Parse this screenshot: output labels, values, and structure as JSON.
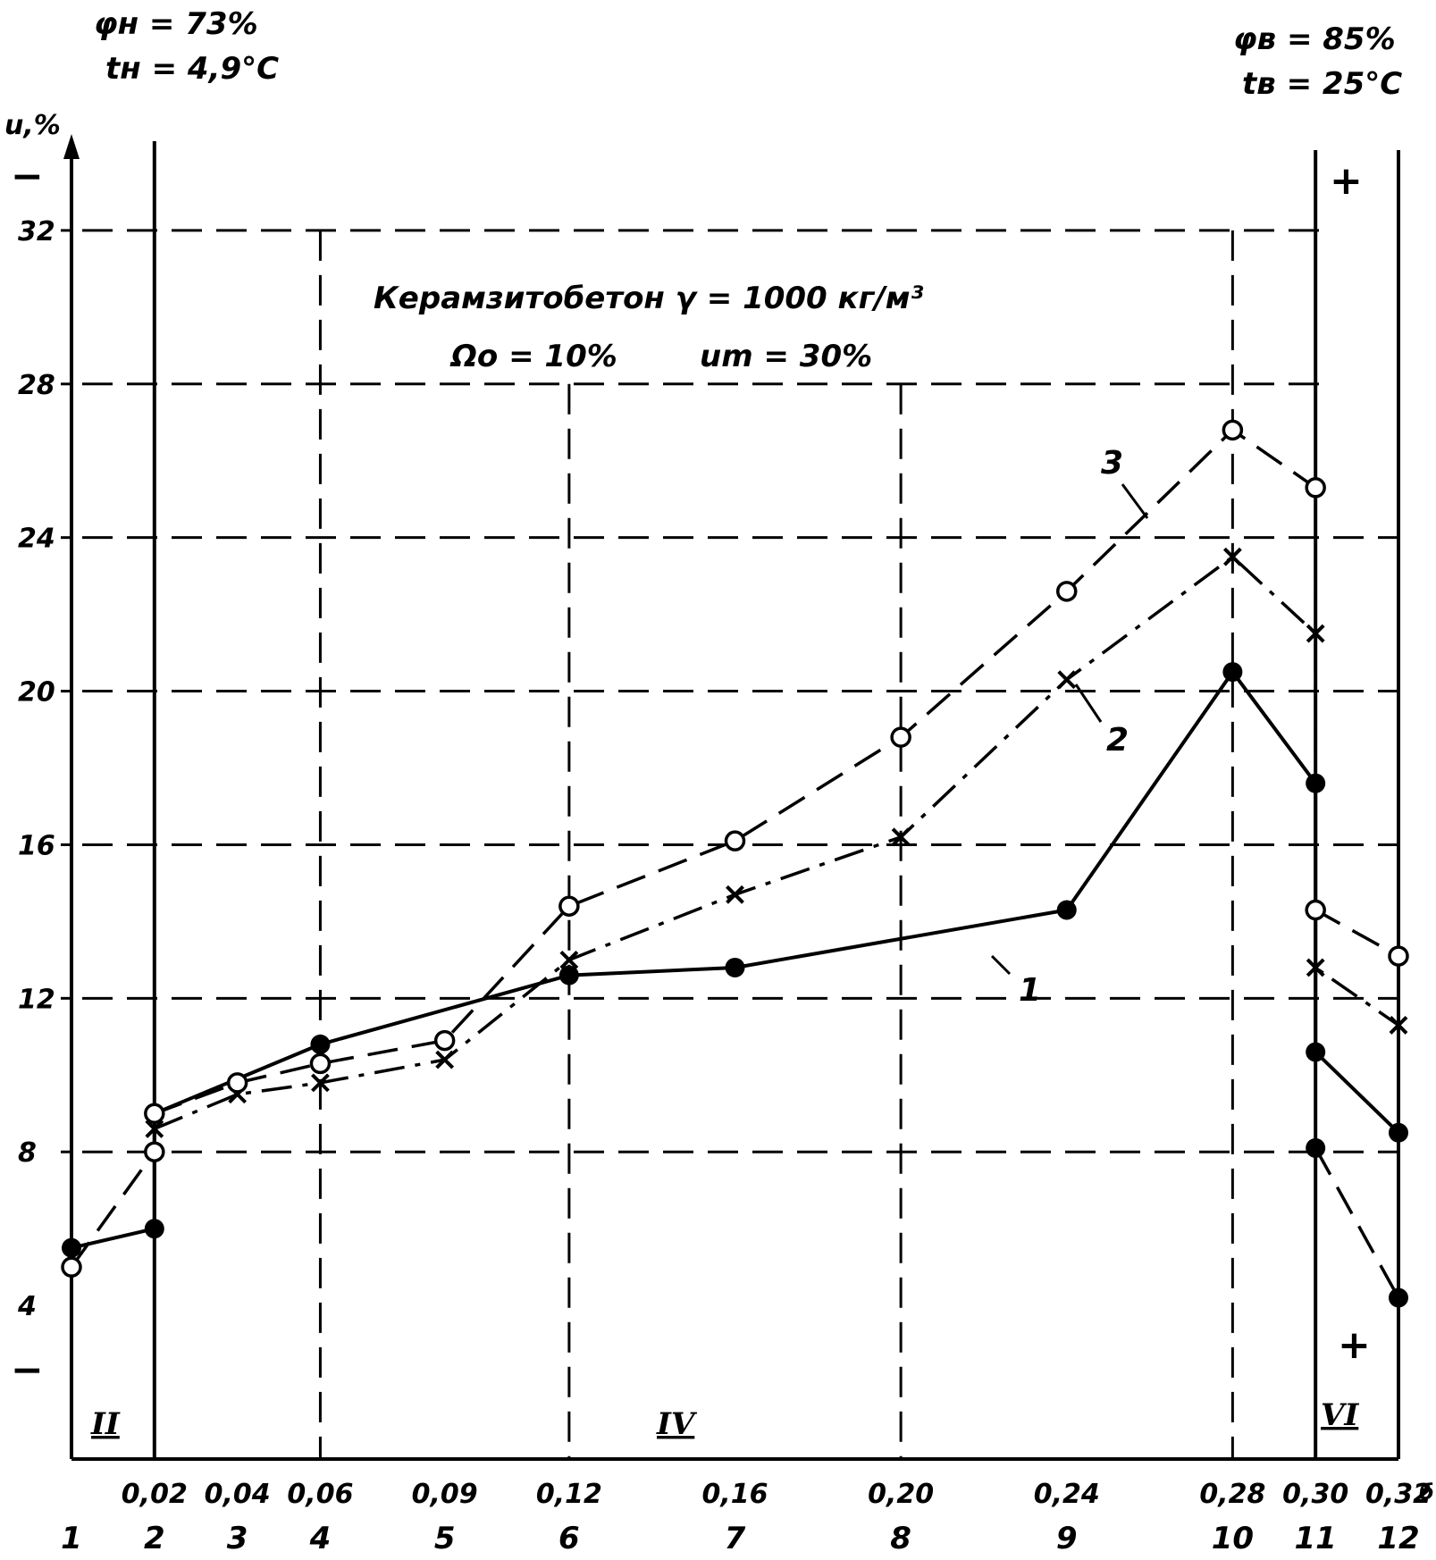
{
  "annotations": {
    "outer_phi": "φн = 73%",
    "outer_t": "tн = 4,9°C",
    "inner_phi": "φв = 85%",
    "inner_t": "tв = 25°C",
    "material": "Керамзитобетон γ = 1000 кг/м³",
    "omega": "Ωо = 10%",
    "um": "um = 30%",
    "zones": [
      "II",
      "IV",
      "VI"
    ],
    "signs": {
      "minus_top": "−",
      "minus_bottom": "−",
      "plus_top": "+",
      "plus_bottom": "+"
    },
    "corner": "б"
  },
  "chart_data": {
    "type": "line",
    "ylabel": "u,%",
    "ylim": [
      0,
      36
    ],
    "y_ticks": [
      4,
      8,
      12,
      16,
      20,
      24,
      28,
      32
    ],
    "xlim": [
      0,
      0.32
    ],
    "x_ticks": [
      {
        "x": 0.02,
        "label": "0,02"
      },
      {
        "x": 0.04,
        "label": "0,04"
      },
      {
        "x": 0.06,
        "label": "0,06"
      },
      {
        "x": 0.09,
        "label": "0,09"
      },
      {
        "x": 0.12,
        "label": "0,12"
      },
      {
        "x": 0.16,
        "label": "0,16"
      },
      {
        "x": 0.2,
        "label": "0,20"
      },
      {
        "x": 0.24,
        "label": "0,24"
      },
      {
        "x": 0.28,
        "label": "0,28"
      },
      {
        "x": 0.3,
        "label": "0,30"
      },
      {
        "x": 0.32,
        "label": "0,32"
      }
    ],
    "point_numbers": [
      {
        "x": 0.0,
        "label": "1"
      },
      {
        "x": 0.02,
        "label": "2"
      },
      {
        "x": 0.04,
        "label": "3"
      },
      {
        "x": 0.06,
        "label": "4"
      },
      {
        "x": 0.09,
        "label": "5"
      },
      {
        "x": 0.12,
        "label": "6"
      },
      {
        "x": 0.16,
        "label": "7"
      },
      {
        "x": 0.2,
        "label": "8"
      },
      {
        "x": 0.24,
        "label": "9"
      },
      {
        "x": 0.28,
        "label": "10"
      },
      {
        "x": 0.3,
        "label": "11"
      },
      {
        "x": 0.32,
        "label": "12"
      }
    ],
    "series": [
      {
        "name": "1",
        "style": "solid",
        "marker": "filled-circle",
        "points": [
          [
            0.0,
            5.5
          ],
          [
            0.02,
            6.0
          ],
          [
            0.02,
            9.0
          ],
          [
            0.06,
            10.8
          ],
          [
            0.12,
            12.6
          ],
          [
            0.16,
            12.8
          ],
          [
            0.24,
            14.3
          ],
          [
            0.28,
            20.5
          ],
          [
            0.3,
            17.6
          ],
          [
            0.3,
            10.6
          ],
          [
            0.32,
            8.5
          ]
        ]
      },
      {
        "name": "2",
        "style": "dash-dot",
        "marker": "cross",
        "points": [
          [
            0.02,
            8.6
          ],
          [
            0.04,
            9.5
          ],
          [
            0.06,
            9.8
          ],
          [
            0.09,
            10.4
          ],
          [
            0.12,
            13.0
          ],
          [
            0.16,
            14.7
          ],
          [
            0.2,
            16.2
          ],
          [
            0.24,
            20.3
          ],
          [
            0.28,
            23.5
          ],
          [
            0.3,
            21.5
          ],
          [
            0.3,
            12.8
          ],
          [
            0.32,
            11.3
          ]
        ]
      },
      {
        "name": "3",
        "style": "dashed",
        "marker": "open-circle",
        "points": [
          [
            0.0,
            5.0
          ],
          [
            0.02,
            8.0
          ],
          [
            0.02,
            9.0
          ],
          [
            0.04,
            9.8
          ],
          [
            0.06,
            10.3
          ],
          [
            0.09,
            10.9
          ],
          [
            0.12,
            14.4
          ],
          [
            0.16,
            16.1
          ],
          [
            0.2,
            18.8
          ],
          [
            0.24,
            22.6
          ],
          [
            0.28,
            26.8
          ],
          [
            0.3,
            25.3
          ],
          [
            0.3,
            14.3
          ],
          [
            0.32,
            13.1
          ]
        ]
      },
      {
        "name": "",
        "style": "dashed",
        "marker": "filled-circle",
        "points": [
          [
            0.3,
            8.1
          ],
          [
            0.32,
            4.2
          ]
        ]
      }
    ],
    "grid": true,
    "legend": "none"
  }
}
